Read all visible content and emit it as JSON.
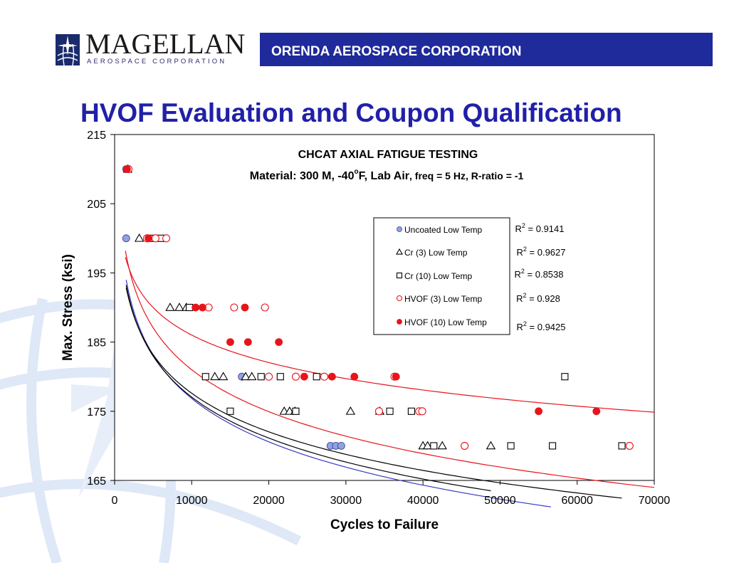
{
  "header": {
    "logo_name": "MAGELLAN",
    "logo_subtitle": "AEROSPACE CORPORATION",
    "banner_text": "ORENDA AEROSPACE CORPORATION",
    "title": "HVOF Evaluation and Coupon Qualification"
  },
  "colors": {
    "banner": "#1f2a9b",
    "title": "#2020a8",
    "red": "#e8141c",
    "blue": "#3535c8",
    "uncoated": "#8fa3e0"
  },
  "chart_data": {
    "type": "scatter",
    "title": "CHCAT AXIAL FATIGUE TESTING",
    "subtitle_main": "Material: 300 M, -40",
    "subtitle_deg": "o",
    "subtitle_f": "F, Lab Air",
    "subtitle_rest": ", freq = 5 Hz, R-ratio = -1",
    "xlabel": "Cycles to Failure",
    "ylabel": "Max. Stress (ksi)",
    "xlim": [
      0,
      70000
    ],
    "ylim": [
      165,
      215
    ],
    "xticks": [
      "0",
      "10000",
      "20000",
      "30000",
      "40000",
      "50000",
      "60000",
      "70000"
    ],
    "yticks": [
      "165",
      "175",
      "185",
      "195",
      "205",
      "215"
    ],
    "legend_position": "upper-right",
    "series": [
      {
        "name": "Uncoated Low Temp",
        "marker": "circle-filled",
        "color": "#8fa3e0",
        "r2": "0.9141",
        "points": [
          [
            1500,
            210
          ],
          [
            1500,
            200
          ],
          [
            16500,
            180
          ],
          [
            28000,
            170
          ],
          [
            28700,
            170
          ],
          [
            29400,
            170
          ]
        ],
        "trend": {
          "color": "#3535c8",
          "a": 260.12,
          "b": -9.041,
          "x_range": [
            1500,
            56600
          ]
        }
      },
      {
        "name": "Cr (3) Low Temp",
        "marker": "triangle-open",
        "color": "#000000",
        "r2": "0.9627",
        "points": [
          [
            1700,
            210
          ],
          [
            3200,
            200
          ],
          [
            7200,
            190
          ],
          [
            8400,
            190
          ],
          [
            9300,
            190
          ],
          [
            13000,
            180
          ],
          [
            14100,
            180
          ],
          [
            17000,
            180
          ],
          [
            17800,
            180
          ],
          [
            22000,
            175
          ],
          [
            22700,
            175
          ],
          [
            23400,
            175
          ],
          [
            30600,
            175
          ],
          [
            34400,
            175
          ],
          [
            40000,
            170
          ],
          [
            40600,
            170
          ],
          [
            42500,
            170
          ],
          [
            48800,
            170
          ]
        ],
        "trend": {
          "color": "#000000",
          "a": 255.73,
          "b": -8.543,
          "x_range": [
            1500,
            48800
          ]
        }
      },
      {
        "name": "Cr (10) Low Temp",
        "marker": "square-open",
        "color": "#000000",
        "r2": "0.8538",
        "points": [
          [
            5000,
            200
          ],
          [
            6000,
            200
          ],
          [
            9700,
            190
          ],
          [
            11800,
            180
          ],
          [
            19000,
            180
          ],
          [
            21500,
            180
          ],
          [
            26200,
            180
          ],
          [
            15000,
            175
          ],
          [
            23500,
            175
          ],
          [
            35700,
            175
          ],
          [
            38500,
            175
          ],
          [
            41400,
            170
          ],
          [
            51400,
            170
          ],
          [
            56800,
            170
          ],
          [
            65800,
            170
          ],
          [
            58400,
            180
          ]
        ],
        "trend": {
          "color": "#000000",
          "a": 251.7,
          "b": -8.045,
          "x_range": [
            1500,
            65800
          ]
        }
      },
      {
        "name": "HVOF (3) Low Temp",
        "marker": "circle-open",
        "color": "#e8141c",
        "r2": "0.928",
        "points": [
          [
            1800,
            210
          ],
          [
            4200,
            200
          ],
          [
            5300,
            200
          ],
          [
            6700,
            200
          ],
          [
            12200,
            190
          ],
          [
            15500,
            190
          ],
          [
            19500,
            190
          ],
          [
            20000,
            180
          ],
          [
            23500,
            180
          ],
          [
            27200,
            180
          ],
          [
            36300,
            180
          ],
          [
            34300,
            175
          ],
          [
            39500,
            175
          ],
          [
            39900,
            175
          ],
          [
            45400,
            170
          ],
          [
            66800,
            170
          ]
        ],
        "trend": {
          "color": "#e8141c",
          "a": 261.55,
          "b": -8.745,
          "x_range": [
            1400,
            70000
          ]
        }
      },
      {
        "name": "HVOF (10) Low Temp",
        "marker": "circle-filled",
        "color": "#e8141c",
        "r2": "0.9425",
        "points": [
          [
            1600,
            210
          ],
          [
            4400,
            200
          ],
          [
            10500,
            190
          ],
          [
            11400,
            190
          ],
          [
            15000,
            185
          ],
          [
            17300,
            185
          ],
          [
            21300,
            185
          ],
          [
            16900,
            190
          ],
          [
            24600,
            180
          ],
          [
            28200,
            180
          ],
          [
            31100,
            180
          ],
          [
            36500,
            180
          ],
          [
            55000,
            175
          ],
          [
            62500,
            175
          ]
        ],
        "trend": {
          "color": "#e8141c",
          "a": 238.82,
          "b": -5.733,
          "x_range": [
            1400,
            70000
          ]
        }
      }
    ]
  }
}
